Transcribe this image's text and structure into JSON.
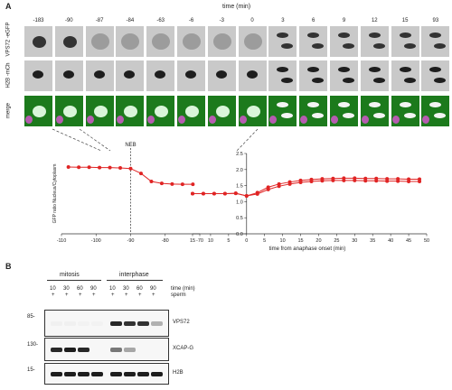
{
  "panel_a": {
    "letter": "A",
    "time_title": "time (min)",
    "timepoints": [
      "-183",
      "-90",
      "-87",
      "-84",
      "-63",
      "-6",
      "-3",
      "0",
      "3",
      "6",
      "9",
      "12",
      "15",
      "93"
    ],
    "row_labels": {
      "row1": "VPS72 -eGFP",
      "row2": "H2B -mCh",
      "row3": "merge"
    }
  },
  "chart_data": [
    {
      "type": "line",
      "ylabel": "GFP ratio Nucleus/Cytoplasm",
      "xlabel": "",
      "annotation": "NEB",
      "xlim": [
        -110,
        -70
      ],
      "x_ticks": [
        -110,
        -100,
        -90,
        -80,
        -70
      ],
      "x_tick_labels": [
        "-110",
        "-100",
        "-90",
        "-80",
        "-70"
      ],
      "series": [
        {
          "x": [
            -108,
            -105,
            -102,
            -99,
            -96,
            -93,
            -90,
            -87,
            -84,
            -81,
            -78,
            -75,
            -72
          ],
          "y": [
            2.08,
            2.07,
            2.07,
            2.06,
            2.06,
            2.05,
            2.03,
            1.88,
            1.63,
            1.57,
            1.55,
            1.54,
            1.54
          ]
        }
      ]
    },
    {
      "type": "line",
      "ylabel": "",
      "xlabel": "time from anaphase onset (min)",
      "ylim": [
        0.0,
        2.5
      ],
      "y_ticks": [
        0.0,
        0.5,
        1.0,
        1.5,
        2.0,
        2.5
      ],
      "y_tick_labels": [
        "0.0",
        "0.5",
        "1.0",
        "1.5",
        "2.0",
        "2.5"
      ],
      "xlim": [
        -15,
        50
      ],
      "x_ticks": [
        -15,
        -10,
        -5,
        0,
        5,
        10,
        15,
        20,
        25,
        30,
        35,
        40,
        45,
        50
      ],
      "x_tick_labels": [
        "15",
        "10",
        "5",
        "0",
        "5",
        "10",
        "15",
        "20",
        "25",
        "30",
        "35",
        "40",
        "45",
        "50"
      ],
      "series": [
        {
          "x": [
            -15,
            -12,
            -9,
            -6,
            -3,
            0,
            3,
            6,
            9,
            12,
            15,
            18,
            21,
            24,
            27,
            30,
            33,
            36,
            39,
            42,
            45,
            48
          ],
          "y": [
            1.25,
            1.25,
            1.25,
            1.25,
            1.26,
            1.18,
            1.28,
            1.45,
            1.55,
            1.61,
            1.66,
            1.69,
            1.71,
            1.72,
            1.73,
            1.73,
            1.72,
            1.72,
            1.71,
            1.71,
            1.7,
            1.7
          ]
        },
        {
          "x": [
            -15,
            -12,
            -9,
            -6,
            -3,
            0,
            3,
            6,
            9,
            12,
            15,
            18,
            21,
            24,
            27,
            30,
            33,
            36,
            39,
            42,
            45,
            48
          ],
          "y": [
            1.25,
            1.25,
            1.25,
            1.25,
            1.26,
            1.18,
            1.24,
            1.38,
            1.48,
            1.55,
            1.6,
            1.63,
            1.65,
            1.66,
            1.66,
            1.66,
            1.65,
            1.65,
            1.64,
            1.64,
            1.63,
            1.63
          ]
        }
      ]
    }
  ],
  "panel_b": {
    "letter": "B",
    "groups": {
      "mitosis": "mitosis",
      "interphase": "interphase"
    },
    "lane_times": [
      "10",
      "30",
      "60",
      "90",
      "10",
      "30",
      "60",
      "90"
    ],
    "time_label": "time (min)",
    "sperm_marks": [
      "+",
      "+",
      "+",
      "+",
      "+",
      "+",
      "+",
      "+"
    ],
    "sperm_label": "sperm",
    "blots": [
      {
        "mw": "85-",
        "label": "VPS72",
        "intensities": [
          0.03,
          0.03,
          0.02,
          0.02,
          0.9,
          0.85,
          0.85,
          0.3
        ]
      },
      {
        "mw": "130-",
        "label": "XCAP-G",
        "intensities": [
          0.9,
          0.95,
          0.9,
          0.0,
          0.55,
          0.35,
          0.0,
          0.0
        ]
      },
      {
        "mw": "15-",
        "label": "H2B",
        "intensities": [
          0.95,
          0.95,
          0.95,
          0.95,
          0.95,
          0.95,
          0.95,
          0.95
        ]
      }
    ]
  }
}
